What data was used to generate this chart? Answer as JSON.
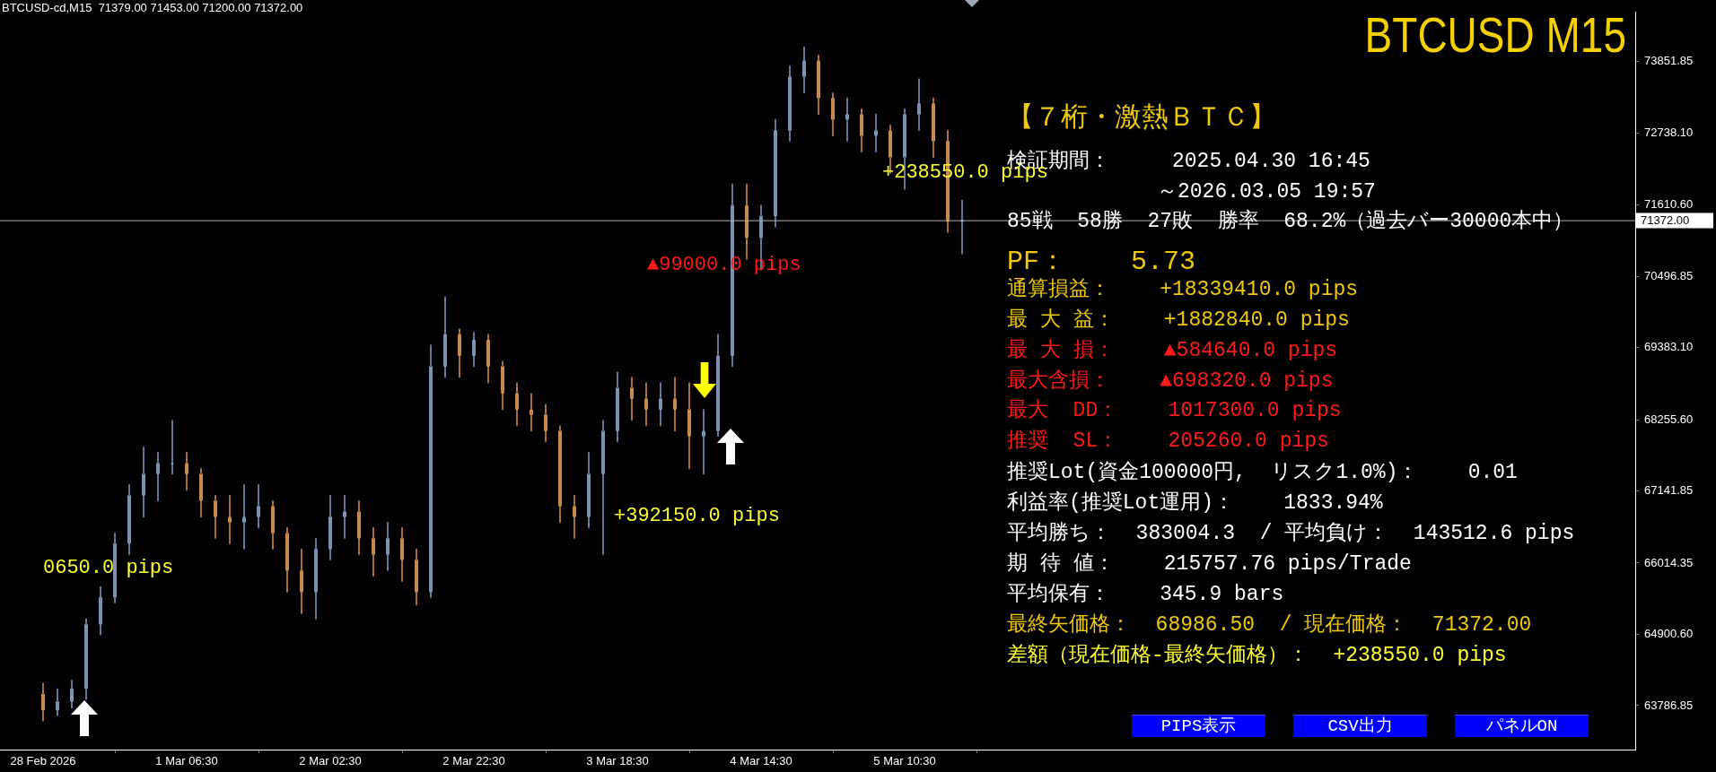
{
  "chart_data": {
    "type": "candlestick",
    "title": "BTCUSD M15",
    "subtitle": "BTCUSD-cd,M15  71379.00 71453.00 71200.00 71372.00",
    "x": [
      "2026-02-28T10:30",
      "2026-02-28T12:30",
      "2026-02-28T14:30",
      "2026-02-28T16:30",
      "2026-02-28T18:30",
      "2026-02-28T20:30",
      "2026-02-28T22:30",
      "2026-03-01T00:30",
      "2026-03-01T02:30",
      "2026-03-01T04:30",
      "2026-03-01T06:30",
      "2026-03-01T08:30",
      "2026-03-01T10:30",
      "2026-03-01T12:30",
      "2026-03-01T14:30",
      "2026-03-01T16:30",
      "2026-03-01T18:30",
      "2026-03-01T20:30",
      "2026-03-01T22:30",
      "2026-03-02T00:30",
      "2026-03-02T02:30",
      "2026-03-02T04:30",
      "2026-03-02T06:30",
      "2026-03-02T08:30",
      "2026-03-02T10:30",
      "2026-03-02T12:30",
      "2026-03-02T14:30",
      "2026-03-02T16:30",
      "2026-03-02T18:30",
      "2026-03-02T20:30",
      "2026-03-02T22:30",
      "2026-03-03T00:30",
      "2026-03-03T02:30",
      "2026-03-03T04:30",
      "2026-03-03T06:30",
      "2026-03-03T08:30",
      "2026-03-03T10:30",
      "2026-03-03T12:30",
      "2026-03-03T14:30",
      "2026-03-03T16:30",
      "2026-03-03T18:30",
      "2026-03-03T20:30",
      "2026-03-03T22:30",
      "2026-03-04T00:30",
      "2026-03-04T02:30",
      "2026-03-04T04:30",
      "2026-03-04T06:30",
      "2026-03-04T08:30",
      "2026-03-04T10:30",
      "2026-03-04T12:30",
      "2026-03-04T14:30",
      "2026-03-04T16:30",
      "2026-03-04T18:30",
      "2026-03-04T20:30",
      "2026-03-04T22:30",
      "2026-03-05T00:30",
      "2026-03-05T02:30",
      "2026-03-05T04:30",
      "2026-03-05T06:30",
      "2026-03-05T08:30",
      "2026-03-05T10:30",
      "2026-03-05T12:30",
      "2026-03-05T14:30",
      "2026-03-05T16:30",
      "2026-03-05T18:30"
    ],
    "ohlc": [
      [
        63967,
        64135,
        63547,
        63715
      ],
      [
        63715,
        64051,
        63631,
        63849
      ],
      [
        63849,
        64185,
        63749,
        64051
      ],
      [
        64051,
        65141,
        63883,
        65057
      ],
      [
        65057,
        65645,
        64890,
        65477
      ],
      [
        65477,
        66484,
        65393,
        66316
      ],
      [
        66316,
        67239,
        66148,
        67071
      ],
      [
        67071,
        67826,
        66735,
        67406
      ],
      [
        67406,
        67742,
        66987,
        67574
      ],
      [
        67574,
        68246,
        67406,
        67574
      ],
      [
        67574,
        67742,
        67155,
        67406
      ],
      [
        67406,
        67490,
        66735,
        66987
      ],
      [
        66987,
        67071,
        66400,
        66735
      ],
      [
        66735,
        67071,
        66316,
        66651
      ],
      [
        66651,
        67239,
        66232,
        66735
      ],
      [
        66735,
        67239,
        66567,
        66903
      ],
      [
        66903,
        66987,
        66232,
        66484
      ],
      [
        66484,
        66567,
        65561,
        65896
      ],
      [
        65896,
        66232,
        65225,
        65561
      ],
      [
        65561,
        66400,
        65141,
        66232
      ],
      [
        66232,
        67071,
        66064,
        66735
      ],
      [
        66735,
        67071,
        66400,
        66819
      ],
      [
        66819,
        66987,
        66148,
        66400
      ],
      [
        66400,
        66567,
        65812,
        66148
      ],
      [
        66148,
        66651,
        65896,
        66400
      ],
      [
        66400,
        66567,
        65729,
        66064
      ],
      [
        66064,
        66232,
        65359,
        65561
      ],
      [
        65561,
        69420,
        65477,
        69085
      ],
      [
        69085,
        70175,
        68917,
        69588
      ],
      [
        69588,
        69672,
        68917,
        69252
      ],
      [
        69252,
        69622,
        69085,
        69504
      ],
      [
        69504,
        69588,
        68833,
        69085
      ],
      [
        69085,
        69169,
        68413,
        68665
      ],
      [
        68665,
        68833,
        68162,
        68413
      ],
      [
        68413,
        68665,
        68078,
        68330
      ],
      [
        68330,
        68497,
        67910,
        68078
      ],
      [
        68078,
        68162,
        66651,
        66903
      ],
      [
        66903,
        67071,
        66400,
        66735
      ],
      [
        66735,
        67742,
        66567,
        67406
      ],
      [
        67406,
        68246,
        66148,
        68078
      ],
      [
        68078,
        69001,
        67910,
        68749
      ],
      [
        68749,
        68917,
        68246,
        68581
      ],
      [
        68581,
        68833,
        68162,
        68413
      ],
      [
        68413,
        68833,
        68162,
        68581
      ],
      [
        68581,
        68917,
        68078,
        68413
      ],
      [
        68413,
        68833,
        67490,
        67994
      ],
      [
        67994,
        68413,
        67406,
        68078
      ],
      [
        68078,
        69588,
        67994,
        69252
      ],
      [
        69252,
        71937,
        69085,
        71602
      ],
      [
        71602,
        71937,
        70763,
        71098
      ],
      [
        71098,
        71602,
        70595,
        71434
      ],
      [
        71434,
        72944,
        71266,
        72776
      ],
      [
        72776,
        73783,
        72608,
        73615
      ],
      [
        73615,
        74085,
        73363,
        73867
      ],
      [
        73867,
        73950,
        73028,
        73280
      ],
      [
        73280,
        73363,
        72692,
        72944
      ],
      [
        72944,
        73280,
        72608,
        73028
      ],
      [
        73028,
        73112,
        72441,
        72692
      ],
      [
        72692,
        73028,
        72441,
        72776
      ],
      [
        72776,
        72860,
        72105,
        72357
      ],
      [
        72357,
        73112,
        71853,
        73028
      ],
      [
        73028,
        73582,
        72776,
        73196
      ],
      [
        73196,
        73280,
        72357,
        72608
      ],
      [
        72608,
        72776,
        71182,
        71350
      ],
      [
        71350,
        71686,
        70847,
        71372
      ]
    ],
    "colors": [
      "#c88a4a",
      "#8090b8",
      "#8090b8",
      "#8090b8",
      "#8090b8",
      "#8090b8",
      "#8090b8",
      "#8090b8",
      "#8090b8",
      "#8090b8",
      "#c88a4a",
      "#c88a4a",
      "#c88a4a",
      "#c88a4a",
      "#8090b8",
      "#8090b8",
      "#c88a4a",
      "#c88a4a",
      "#c88a4a",
      "#8090b8",
      "#8090b8",
      "#8090b8",
      "#c88a4a",
      "#c88a4a",
      "#8090b8",
      "#c88a4a",
      "#c88a4a",
      "#8090b8",
      "#8090b8",
      "#c88a4a",
      "#8090b8",
      "#c88a4a",
      "#c88a4a",
      "#c88a4a",
      "#c88a4a",
      "#c88a4a",
      "#c88a4a",
      "#c88a4a",
      "#8090b8",
      "#8090b8",
      "#8090b8",
      "#c88a4a",
      "#c88a4a",
      "#8090b8",
      "#c88a4a",
      "#c88a4a",
      "#8090b8",
      "#8090b8",
      "#8090b8",
      "#c88a4a",
      "#8090b8",
      "#8090b8",
      "#8090b8",
      "#8090b8",
      "#c88a4a",
      "#c88a4a",
      "#8090b8",
      "#c88a4a",
      "#8090b8",
      "#c88a4a",
      "#8090b8",
      "#8090b8",
      "#c88a4a",
      "#c88a4a",
      "#8090b8"
    ],
    "xlim": [
      "2026-02-28T04:30",
      "2026-03-09T16:15"
    ],
    "xticks": [
      {
        "value": "2026-02-28T10:30",
        "label": "28 Feb 2026"
      },
      {
        "value": "2026-03-01T06:30",
        "label": "1 Mar 06:30"
      },
      {
        "value": "2026-03-02T02:30",
        "label": "2 Mar 02:30"
      },
      {
        "value": "2026-03-02T22:30",
        "label": "2 Mar 22:30"
      },
      {
        "value": "2026-03-03T18:30",
        "label": "3 Mar 18:30"
      },
      {
        "value": "2026-03-04T14:30",
        "label": "4 Mar 14:30"
      },
      {
        "value": "2026-03-05T10:30",
        "label": "5 Mar 10:30"
      }
    ],
    "ylim": [
      63100,
      74620
    ],
    "yticks": [
      63786.85,
      {
        "value": 64900.6,
        "label": "64900.60"
      },
      66014.35,
      67141.85,
      {
        "value": 68255.6,
        "label": "68255.60"
      },
      {
        "value": 69383.1,
        "label": "69383.10"
      },
      70496.85,
      {
        "value": 71610.6,
        "label": "71610.60"
      },
      {
        "value": 72738.1,
        "label": "72738.10"
      },
      73851.85
    ],
    "ref_lines": [
      {
        "axis": "y",
        "value": 71372,
        "label": "71372.00",
        "color": "#b0b0b0"
      }
    ],
    "annotations": [
      "+238550.0 pips",
      "▲99000.0 pips",
      "+392150.0 pips",
      "0650.0 pips",
      "【７桁・激熱ＢＴＣ】",
      "検証期間：     2025.04.30 16:45",
      "～2026.03.05 19:57",
      "85戦  58勝  27敗  勝率  68.2%（過去バー30000本中）",
      "PF：    5.73",
      "通算損益：    +18339410.0 pips",
      "最 大 益：    +1882840.0 pips",
      "最 大 損：    ▲584640.0 pips",
      "最大含損：    ▲698320.0 pips",
      "最大  DD：    1017300.0 pips",
      "推奨  SL：    205260.0 pips",
      "推奨Lot(資金100000円,  リスク1.0%)：    0.01",
      "利益率(推奨Lot運用)：    1833.94%",
      "平均勝ち：  383004.3  / 平均負け：  143512.6 pips",
      "期 待 値：    215757.76 pips/Trade",
      "平均保有：    345.9 bars",
      "最終矢価格：  68986.50  / 現在価格：  71372.00",
      "差額（現在価格-最終矢価格）：  +238550.0 pips",
      "PIPS表示",
      "CSV出力",
      "パネルON"
    ]
  }
}
